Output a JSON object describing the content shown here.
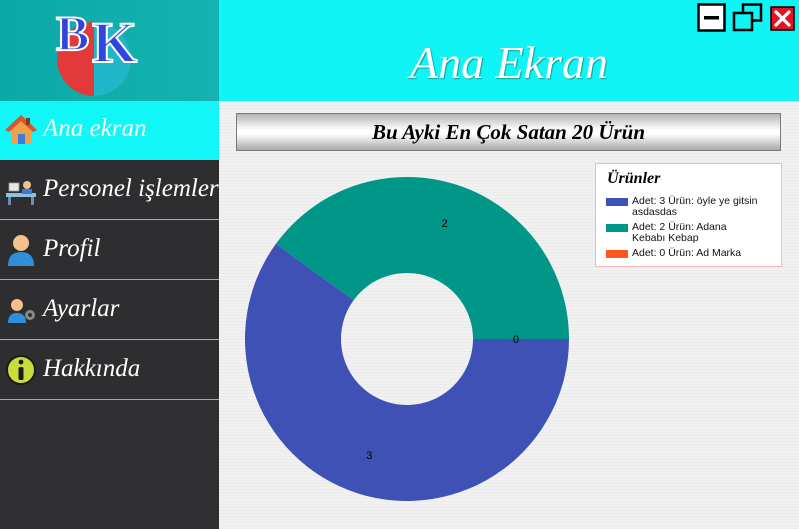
{
  "header": {
    "title": "Ana Ekran"
  },
  "window_controls": [
    {
      "name": "minimize-button",
      "icon": "minimize-icon"
    },
    {
      "name": "restore-button",
      "icon": "restore-icon"
    },
    {
      "name": "close-button",
      "icon": "close-icon"
    }
  ],
  "logo": {
    "text": "BK",
    "icon": "app-logo"
  },
  "sidebar": {
    "items": [
      {
        "label": "Ana ekran",
        "icon": "home-icon",
        "active": true
      },
      {
        "label": "Personel işlemleri",
        "icon": "staff-desk-icon",
        "active": false
      },
      {
        "label": "Profil",
        "icon": "user-icon",
        "active": false
      },
      {
        "label": "Ayarlar",
        "icon": "user-settings-icon",
        "active": false
      },
      {
        "label": "Hakkında",
        "icon": "info-icon",
        "active": false
      }
    ]
  },
  "main": {
    "chart_title": "Bu Ayki En Çok Satan 20 Ürün",
    "legend": {
      "title": "Ürünler",
      "entries": [
        {
          "label": "Adet: 3 Ürün: öyle ye gitsin asdasdas",
          "color": "#3f51b5"
        },
        {
          "label": "Adet: 2 Ürün: Adana Kebabı Kebap",
          "color": "#009688"
        },
        {
          "label": "Adet: 0 Ürün: Ad Marka",
          "color": "#ff5722"
        }
      ]
    }
  },
  "chart_data": {
    "type": "pie",
    "title": "Bu Ayki En Çok Satan 20 Ürün",
    "donut": true,
    "legend_title": "Ürünler",
    "legend_position": "top-right",
    "slices": [
      {
        "label": "Adet: 3 Ürün: öyle ye gitsin asdasdas",
        "value": 3,
        "color": "#3f51b5"
      },
      {
        "label": "Adet: 2 Ürün: Adana Kebabı Kebap",
        "value": 2,
        "color": "#009688"
      },
      {
        "label": "Adet: 0 Ürün: Ad Marka",
        "value": 0,
        "color": "#ff5722"
      }
    ]
  },
  "colors": {
    "header_bg": "#0ff5f5",
    "sidebar_bg": "#302f32",
    "active_item_bg": "#11f6f6",
    "close_red": "#e81123"
  }
}
